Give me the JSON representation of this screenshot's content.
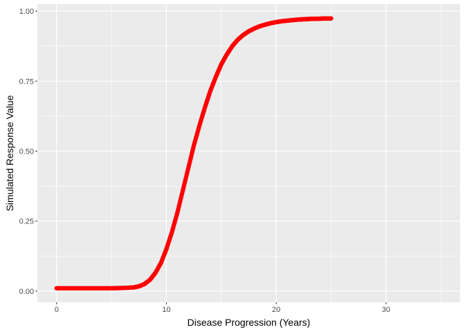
{
  "chart_data": {
    "type": "scatter",
    "title": "",
    "xlabel": "Disease Progression (Years)",
    "ylabel": "Simulated Response Value",
    "xlim": [
      -1.75,
      36.75
    ],
    "ylim": [
      -0.04,
      1.025
    ],
    "x_ticks": [
      0,
      10,
      20,
      30
    ],
    "x_tick_labels": [
      "0",
      "10",
      "20",
      "30"
    ],
    "y_ticks": [
      0,
      0.25,
      0.5,
      0.75,
      1.0
    ],
    "y_tick_labels": [
      "0.00",
      "0.25",
      "0.50",
      "0.75",
      "1.00"
    ],
    "grid": true,
    "legend": "none",
    "series": [
      {
        "color": "#ff0000",
        "x": [
          0,
          1,
          2,
          3,
          4,
          5,
          6,
          7,
          7.5,
          8,
          8.5,
          9,
          9.5,
          10,
          10.5,
          11,
          11.5,
          12,
          12.5,
          13,
          13.5,
          14,
          14.5,
          15,
          15.5,
          16,
          16.5,
          17,
          17.5,
          18,
          18.5,
          19,
          19.5,
          20,
          20.5,
          21,
          21.5,
          22,
          22.5,
          23,
          23.5,
          24,
          24.5,
          25
        ],
        "y": [
          0.01,
          0.01,
          0.01,
          0.01,
          0.01,
          0.01,
          0.011,
          0.013,
          0.017,
          0.025,
          0.04,
          0.065,
          0.1,
          0.15,
          0.21,
          0.28,
          0.36,
          0.44,
          0.52,
          0.59,
          0.655,
          0.715,
          0.765,
          0.81,
          0.845,
          0.875,
          0.898,
          0.915,
          0.928,
          0.938,
          0.946,
          0.952,
          0.957,
          0.961,
          0.964,
          0.966,
          0.968,
          0.97,
          0.971,
          0.972,
          0.973,
          0.973,
          0.974,
          0.974
        ]
      }
    ]
  },
  "colors": {
    "panel_background": "#ebebeb",
    "grid_major": "#ffffff",
    "point": "#ff0000"
  }
}
